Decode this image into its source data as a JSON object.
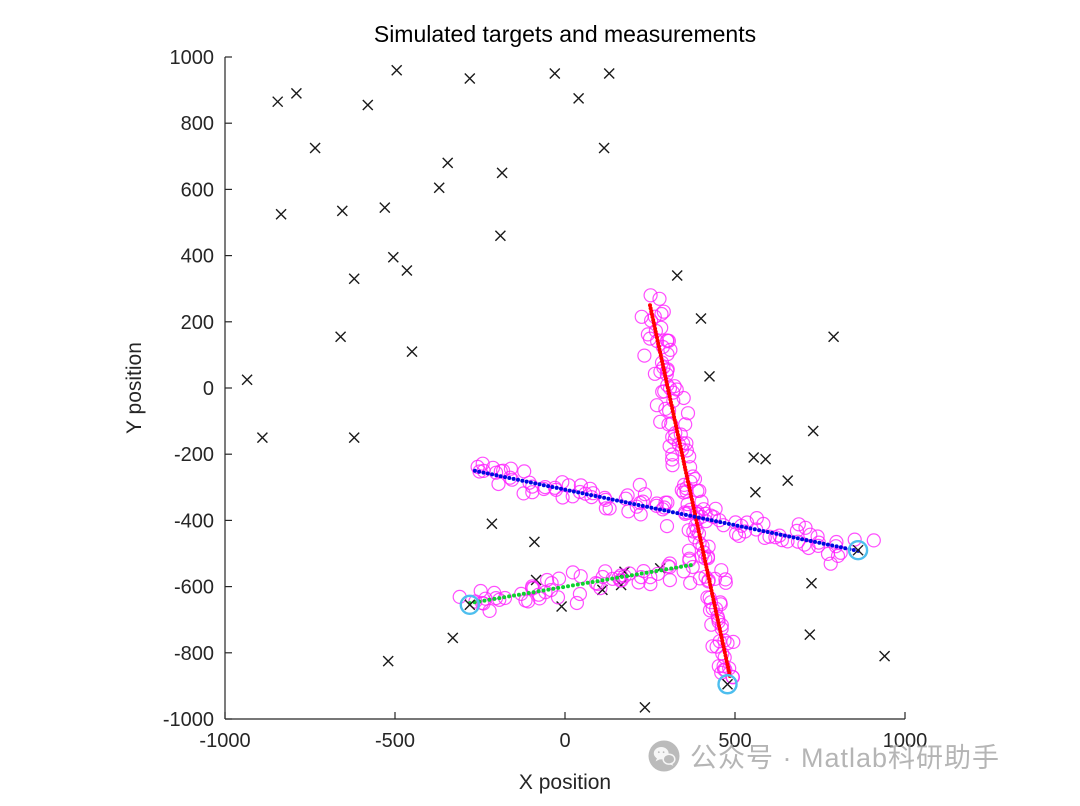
{
  "watermark": {
    "icon": "wechat-icon",
    "text": "公众号 · Matlab科研助手"
  },
  "chart_data": {
    "type": "scatter",
    "title": "Simulated targets and measurements",
    "xlabel": "X position",
    "ylabel": "Y position",
    "xlim": [
      -1000,
      1000
    ],
    "ylim": [
      -1000,
      1000
    ],
    "x_ticks": [
      -1000,
      -500,
      0,
      500,
      1000
    ],
    "y_ticks": [
      -1000,
      -800,
      -600,
      -400,
      -200,
      0,
      200,
      400,
      600,
      800,
      1000
    ],
    "grid": false,
    "legend": "none",
    "axis_color": "#262626",
    "series": [
      {
        "name": "target-trajectory-red",
        "type": "line",
        "style": "dotted",
        "color": "#ff0000",
        "start": [
          250,
          250
        ],
        "end": [
          485,
          -870
        ]
      },
      {
        "name": "target-trajectory-blue",
        "type": "line",
        "style": "dotted",
        "color": "#0008e0",
        "start": [
          -265,
          -250
        ],
        "end": [
          862,
          -492
        ]
      },
      {
        "name": "target-trajectory-green",
        "type": "line",
        "style": "dotted",
        "color": "#0fd02f",
        "start": [
          -280,
          -650
        ],
        "end": [
          370,
          -535
        ]
      },
      {
        "name": "measurements",
        "type": "scatter",
        "marker": "circle",
        "color": "#ff22ff",
        "noise_sigma": 20,
        "counts": [
          130,
          95,
          55
        ],
        "seed": 12
      },
      {
        "name": "clutter",
        "type": "scatter",
        "marker": "x",
        "color": "#1a1a1a",
        "points": [
          [
            -845,
            865
          ],
          [
            -790,
            890
          ],
          [
            -580,
            855
          ],
          [
            -495,
            960
          ],
          [
            -280,
            935
          ],
          [
            -30,
            950
          ],
          [
            40,
            875
          ],
          [
            130,
            950
          ],
          [
            -735,
            725
          ],
          [
            115,
            725
          ],
          [
            -345,
            680
          ],
          [
            -185,
            650
          ],
          [
            -370,
            605
          ],
          [
            -530,
            545
          ],
          [
            -655,
            535
          ],
          [
            -835,
            525
          ],
          [
            -190,
            460
          ],
          [
            -505,
            395
          ],
          [
            -465,
            355
          ],
          [
            -620,
            330
          ],
          [
            -660,
            155
          ],
          [
            -450,
            110
          ],
          [
            -935,
            25
          ],
          [
            -890,
            -150
          ],
          [
            -620,
            -150
          ],
          [
            330,
            340
          ],
          [
            400,
            210
          ],
          [
            790,
            155
          ],
          [
            425,
            35
          ],
          [
            730,
            -130
          ],
          [
            555,
            -210
          ],
          [
            590,
            -215
          ],
          [
            655,
            -280
          ],
          [
            560,
            -315
          ],
          [
            -215,
            -410
          ],
          [
            -90,
            -465
          ],
          [
            280,
            -545
          ],
          [
            175,
            -555
          ],
          [
            -85,
            -580
          ],
          [
            110,
            -610
          ],
          [
            165,
            -595
          ],
          [
            -10,
            -660
          ],
          [
            725,
            -590
          ],
          [
            -330,
            -755
          ],
          [
            720,
            -745
          ],
          [
            -520,
            -825
          ],
          [
            235,
            -965
          ],
          [
            940,
            -810
          ]
        ]
      },
      {
        "name": "estimates",
        "type": "scatter",
        "marker": "circle",
        "color": "#4dbeee",
        "points": [
          [
            -280,
            -655
          ],
          [
            862,
            -490
          ],
          [
            478,
            -895
          ]
        ]
      }
    ]
  }
}
